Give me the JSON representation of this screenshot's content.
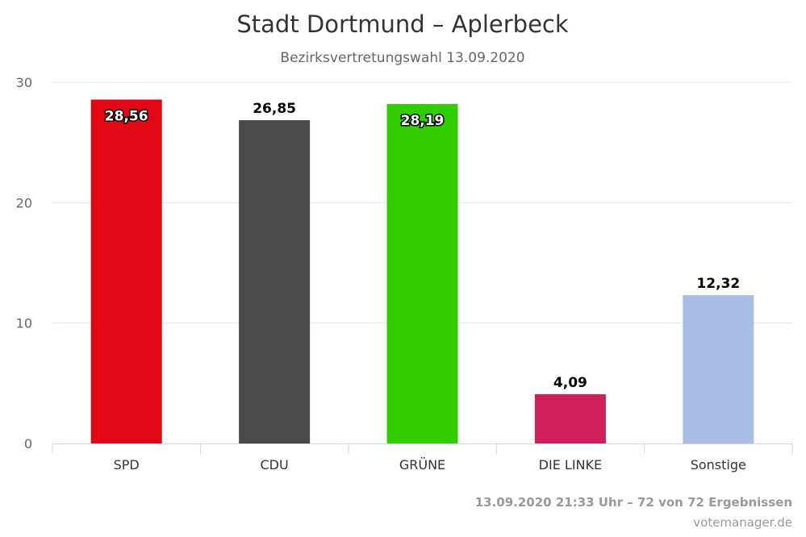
{
  "chart_data": {
    "type": "bar",
    "title": "Stadt Dortmund – Aplerbeck",
    "subtitle": "Bezirksvertretungswahl 13.09.2020",
    "categories": [
      "SPD",
      "CDU",
      "GRÜNE",
      "DIE LINKE",
      "Sonstige"
    ],
    "values": [
      28.56,
      26.85,
      28.19,
      4.09,
      12.32
    ],
    "value_labels": [
      "28,56",
      "26,85",
      "28,19",
      "4,09",
      "12,32"
    ],
    "colors": [
      "#e20714",
      "#4a4a4a",
      "#32cd00",
      "#d01f5c",
      "#aabde3"
    ],
    "labels_inside": [
      true,
      false,
      true,
      false,
      false
    ],
    "ylim": [
      0,
      30
    ],
    "yticks": [
      0,
      10,
      20,
      30
    ],
    "ytick_labels": [
      "0",
      "10",
      "20",
      "30"
    ],
    "xlabel": "",
    "ylabel": "",
    "grid": true,
    "legend": "none"
  },
  "footer": {
    "status": "13.09.2020 21:33 Uhr – 72 von 72 Ergebnissen",
    "source": "votemanager.de"
  }
}
